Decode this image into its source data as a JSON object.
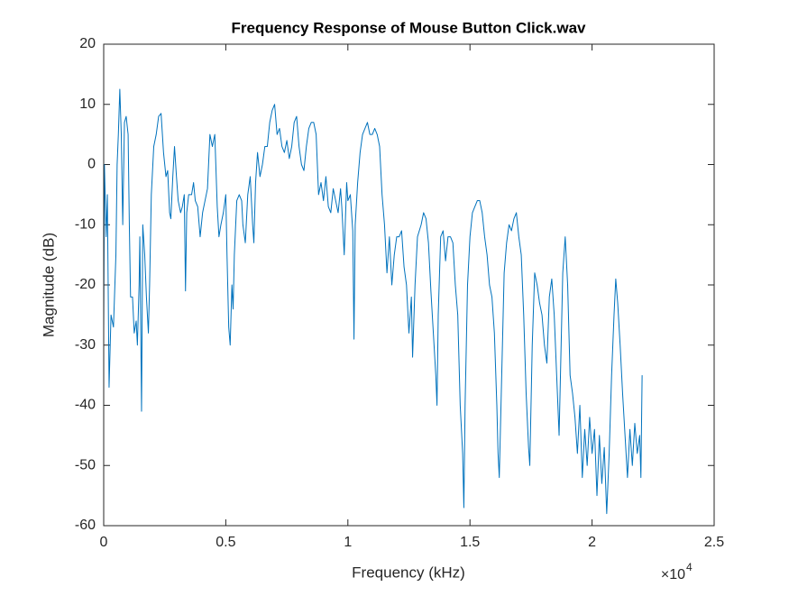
{
  "chart_data": {
    "type": "line",
    "title": "Frequency Response of Mouse Button Click.wav",
    "xlabel": "Frequency (kHz)",
    "ylabel": "Magnitude (dB)",
    "x_multiplier": "×10",
    "x_multiplier_exponent": "4",
    "color": "#0072bd",
    "xlim": [
      0,
      2.5
    ],
    "xticks": [
      0,
      0.5,
      1,
      1.5,
      2,
      2.5
    ],
    "ylim": [
      -60,
      20
    ],
    "yticks": [
      -60,
      -50,
      -40,
      -30,
      -20,
      -10,
      0,
      10,
      20
    ],
    "x": [
      0,
      0.003,
      0.01,
      0.015,
      0.022,
      0.03,
      0.04,
      0.05,
      0.055,
      0.06,
      0.066,
      0.072,
      0.078,
      0.085,
      0.092,
      0.1,
      0.105,
      0.11,
      0.118,
      0.125,
      0.133,
      0.138,
      0.145,
      0.148,
      0.155,
      0.16,
      0.168,
      0.175,
      0.183,
      0.188,
      0.195,
      0.205,
      0.215,
      0.225,
      0.235,
      0.245,
      0.255,
      0.262,
      0.27,
      0.275,
      0.283,
      0.29,
      0.298,
      0.305,
      0.315,
      0.322,
      0.33,
      0.335,
      0.34,
      0.348,
      0.36,
      0.368,
      0.375,
      0.385,
      0.395,
      0.405,
      0.415,
      0.425,
      0.435,
      0.445,
      0.455,
      0.465,
      0.472,
      0.48,
      0.49,
      0.5,
      0.505,
      0.512,
      0.518,
      0.525,
      0.53,
      0.535,
      0.545,
      0.555,
      0.565,
      0.57,
      0.58,
      0.59,
      0.6,
      0.61,
      0.615,
      0.622,
      0.63,
      0.64,
      0.65,
      0.66,
      0.67,
      0.68,
      0.69,
      0.7,
      0.71,
      0.72,
      0.73,
      0.74,
      0.75,
      0.76,
      0.77,
      0.78,
      0.79,
      0.8,
      0.81,
      0.82,
      0.83,
      0.84,
      0.85,
      0.86,
      0.87,
      0.88,
      0.89,
      0.9,
      0.91,
      0.92,
      0.93,
      0.94,
      0.95,
      0.96,
      0.97,
      0.975,
      0.985,
      0.995,
      1.0,
      1.01,
      1.02,
      1.025,
      1.03,
      1.04,
      1.05,
      1.06,
      1.07,
      1.08,
      1.09,
      1.1,
      1.11,
      1.12,
      1.13,
      1.14,
      1.15,
      1.16,
      1.17,
      1.18,
      1.19,
      1.2,
      1.21,
      1.22,
      1.23,
      1.24,
      1.25,
      1.26,
      1.265,
      1.275,
      1.285,
      1.3,
      1.31,
      1.32,
      1.33,
      1.34,
      1.35,
      1.36,
      1.365,
      1.37,
      1.38,
      1.39,
      1.4,
      1.41,
      1.42,
      1.43,
      1.44,
      1.45,
      1.46,
      1.47,
      1.475,
      1.48,
      1.49,
      1.5,
      1.51,
      1.52,
      1.53,
      1.54,
      1.55,
      1.56,
      1.57,
      1.58,
      1.59,
      1.6,
      1.61,
      1.615,
      1.62,
      1.63,
      1.64,
      1.65,
      1.66,
      1.67,
      1.68,
      1.69,
      1.7,
      1.71,
      1.72,
      1.73,
      1.74,
      1.745,
      1.755,
      1.765,
      1.775,
      1.785,
      1.795,
      1.805,
      1.815,
      1.825,
      1.835,
      1.845,
      1.855,
      1.865,
      1.88,
      1.89,
      1.9,
      1.91,
      1.92,
      1.93,
      1.94,
      1.95,
      1.96,
      1.97,
      1.98,
      1.99,
      2.0,
      2.01,
      2.02,
      2.03,
      2.04,
      2.05,
      2.06,
      2.07,
      2.08,
      2.09,
      2.097,
      2.105,
      2.115,
      2.125,
      2.135,
      2.145,
      2.155,
      2.165,
      2.175,
      2.185,
      2.195,
      2.2,
      2.205
    ],
    "values": [
      -28,
      0,
      -12,
      -5,
      -37,
      -25,
      -27,
      -15,
      0,
      5,
      12.5,
      5,
      -10,
      7,
      8,
      5,
      -10,
      -22,
      -22,
      -28,
      -26,
      -30,
      -20,
      -12,
      -41,
      -10,
      -15,
      -22,
      -28,
      -20,
      -5,
      3,
      5,
      8,
      8.5,
      2,
      -2,
      -1,
      -8,
      -9,
      -2,
      3,
      -2,
      -6,
      -8,
      -7,
      -5,
      -21,
      -8,
      -5,
      -5,
      -3,
      -6,
      -7,
      -12,
      -8,
      -6,
      -4,
      5,
      3,
      5,
      -7,
      -12,
      -10,
      -8,
      -5,
      -15,
      -27,
      -30,
      -20,
      -24,
      -15,
      -6,
      -5,
      -6,
      -10,
      -13,
      -5,
      -2,
      -10,
      -13,
      -3,
      2,
      -2,
      0,
      3,
      3,
      7,
      9,
      10,
      5,
      6,
      3,
      2,
      4,
      1,
      3,
      7,
      8,
      3,
      0,
      -1,
      3,
      6,
      7,
      7,
      5,
      -5,
      -3,
      -6,
      -2,
      -7,
      -8,
      -4,
      -6,
      -8,
      -4,
      -7,
      -15,
      -3,
      -6,
      -5,
      -11,
      -29,
      -10,
      -3,
      2,
      5,
      6,
      7,
      5,
      5,
      6,
      5,
      3,
      -5,
      -10,
      -18,
      -12,
      -20,
      -15,
      -12,
      -12,
      -11,
      -17,
      -20,
      -28,
      -22,
      -32,
      -20,
      -12,
      -10,
      -8,
      -9,
      -13,
      -21,
      -28,
      -35,
      -40,
      -25,
      -12,
      -11,
      -16,
      -12,
      -12,
      -13,
      -20,
      -25,
      -40,
      -48,
      -57,
      -40,
      -20,
      -12,
      -8,
      -7,
      -6,
      -6,
      -8,
      -12,
      -15,
      -20,
      -22,
      -28,
      -40,
      -48,
      -52,
      -35,
      -18,
      -13,
      -10,
      -11,
      -9,
      -8,
      -12,
      -15,
      -25,
      -38,
      -47,
      -50,
      -30,
      -18,
      -20,
      -23,
      -25,
      -30,
      -33,
      -22,
      -19,
      -25,
      -35,
      -45,
      -18,
      -12,
      -20,
      -35,
      -38,
      -42,
      -48,
      -40,
      -52,
      -44,
      -50,
      -42,
      -48,
      -44,
      -55,
      -45,
      -53,
      -47,
      -58,
      -48,
      -35,
      -25,
      -19,
      -23,
      -30,
      -38,
      -45,
      -52,
      -44,
      -50,
      -43,
      -48,
      -45,
      -52,
      -35
    ]
  }
}
